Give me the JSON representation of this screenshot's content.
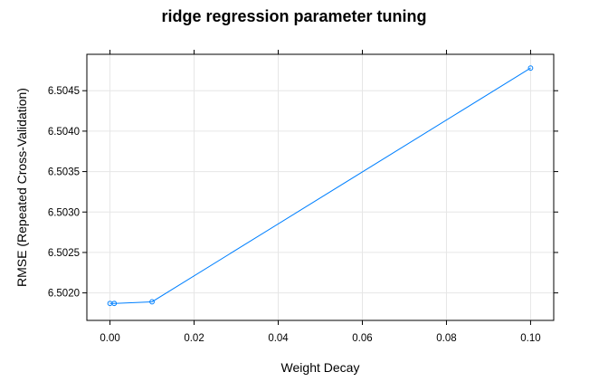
{
  "chart_data": {
    "type": "line",
    "title": "ridge regression parameter tuning",
    "xlabel": "Weight Decay",
    "ylabel": "RMSE (Repeated Cross-Validation)",
    "xlim": [
      -0.0055,
      0.1055
    ],
    "ylim": [
      6.50166,
      6.50495
    ],
    "x_ticks": [
      0.0,
      0.02,
      0.04,
      0.06,
      0.08,
      0.1
    ],
    "x_tick_labels": [
      "0.00",
      "0.02",
      "0.04",
      "0.06",
      "0.08",
      "0.10"
    ],
    "y_ticks": [
      6.502,
      6.5025,
      6.503,
      6.5035,
      6.504,
      6.5045
    ],
    "y_tick_labels": [
      "6.5020",
      "6.5025",
      "6.5030",
      "6.5035",
      "6.5040",
      "6.5045"
    ],
    "grid": true,
    "series": [
      {
        "x": [
          0.0,
          0.001,
          0.01,
          0.1
        ],
        "y": [
          6.50187,
          6.50187,
          6.50189,
          6.50478
        ],
        "color": "#0080ff",
        "marker": "circle-open"
      }
    ]
  }
}
